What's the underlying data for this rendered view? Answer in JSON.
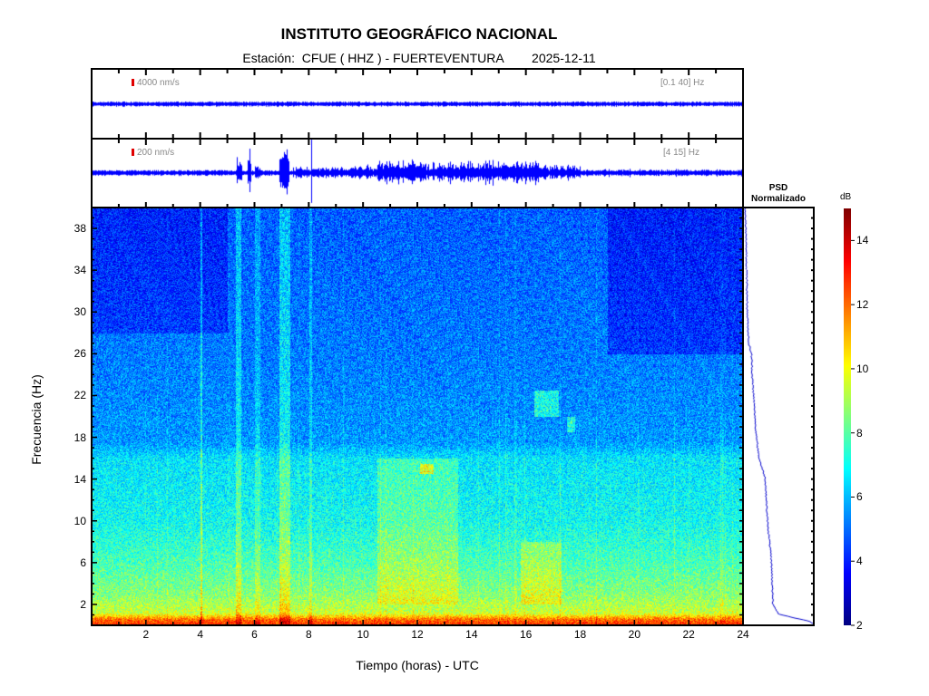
{
  "header": {
    "title": "INSTITUTO GEOGRÁFICO NACIONAL",
    "subtitle": "Estación:  CFUE ( HHZ ) - FUERTEVENTURA        2025-12-11"
  },
  "traces": [
    {
      "scale_label": "4000 nm/s",
      "band_label": "[0.1 40] Hz",
      "base_amp": 0.08,
      "bursts": []
    },
    {
      "scale_label": "200 nm/s",
      "band_label": "[4 15] Hz",
      "base_amp": 0.09,
      "bursts": [
        [
          4.0,
          4.02,
          1.0
        ],
        [
          5.3,
          5.5,
          0.6
        ],
        [
          5.7,
          5.85,
          0.8
        ],
        [
          6.0,
          6.2,
          0.35
        ],
        [
          6.9,
          7.2,
          0.9
        ],
        [
          7.15,
          7.25,
          0.5
        ],
        [
          8.05,
          8.08,
          1.0
        ],
        [
          7.4,
          9.5,
          0.22
        ],
        [
          9.5,
          10.5,
          0.28
        ],
        [
          10.5,
          12.0,
          0.48
        ],
        [
          12.0,
          14.5,
          0.38
        ],
        [
          14.5,
          16.5,
          0.42
        ],
        [
          16.5,
          18.0,
          0.3
        ],
        [
          18.0,
          24,
          0.13
        ]
      ]
    }
  ],
  "chart_data": {
    "type": "heatmap",
    "title": "INSTITUTO GEOGRÁFICO NACIONAL",
    "xlabel": "Tiempo (horas) - UTC",
    "ylabel": "Frecuencia  (Hz)",
    "xlim": [
      0,
      24
    ],
    "ylim": [
      0,
      40
    ],
    "x_ticks": [
      2,
      4,
      6,
      8,
      10,
      12,
      14,
      16,
      18,
      20,
      22,
      24
    ],
    "y_ticks": [
      2,
      6,
      10,
      14,
      18,
      22,
      26,
      30,
      34,
      38
    ],
    "colorbar": {
      "label": "dB",
      "range": [
        2,
        15
      ],
      "ticks": [
        2,
        4,
        6,
        8,
        10,
        12,
        14
      ],
      "colormap": "jet"
    },
    "base_profile_db": [
      [
        0,
        13
      ],
      [
        0.6,
        12
      ],
      [
        1.2,
        9.5
      ],
      [
        3,
        8.6
      ],
      [
        6,
        7.8
      ],
      [
        10,
        7.0
      ],
      [
        16,
        6.6
      ],
      [
        17.5,
        5.6
      ],
      [
        26,
        5.2
      ],
      [
        40,
        4.8
      ]
    ],
    "quiet_periods": [
      [
        0,
        5,
        28,
        40,
        -0.8
      ],
      [
        19,
        24,
        26,
        40,
        -0.9
      ]
    ],
    "events": [
      [
        4.0,
        4.05,
        0,
        40,
        2.0
      ],
      [
        5.3,
        5.5,
        0,
        40,
        1.5
      ],
      [
        6.0,
        6.2,
        0,
        40,
        1.0
      ],
      [
        6.9,
        7.3,
        0,
        40,
        1.6
      ],
      [
        8.0,
        8.1,
        0,
        40,
        1.2
      ],
      [
        10.5,
        13.5,
        2,
        16,
        1.2
      ],
      [
        15.8,
        17.3,
        2,
        8,
        1.3
      ],
      [
        12.1,
        12.6,
        14.5,
        15.5,
        2.5
      ],
      [
        16.3,
        17.2,
        20,
        22.5,
        2.0
      ],
      [
        17.5,
        17.8,
        18.5,
        20,
        2.0
      ]
    ],
    "psd_panel": {
      "title": "PSD\nNormalizado",
      "title_line1": "PSD",
      "title_line2": "Normalizado",
      "curve": [
        [
          0.1,
          1.0
        ],
        [
          0.3,
          0.95
        ],
        [
          0.6,
          0.75
        ],
        [
          1.0,
          0.5
        ],
        [
          2,
          0.42
        ],
        [
          4,
          0.41
        ],
        [
          6,
          0.4
        ],
        [
          8,
          0.37
        ],
        [
          10,
          0.34
        ],
        [
          14,
          0.31
        ],
        [
          16,
          0.22
        ],
        [
          18,
          0.18
        ],
        [
          22,
          0.14
        ],
        [
          24,
          0.12
        ],
        [
          26,
          0.11
        ],
        [
          27,
          0.07
        ],
        [
          30,
          0.05
        ],
        [
          34,
          0.04
        ],
        [
          40,
          0.02
        ]
      ]
    }
  }
}
